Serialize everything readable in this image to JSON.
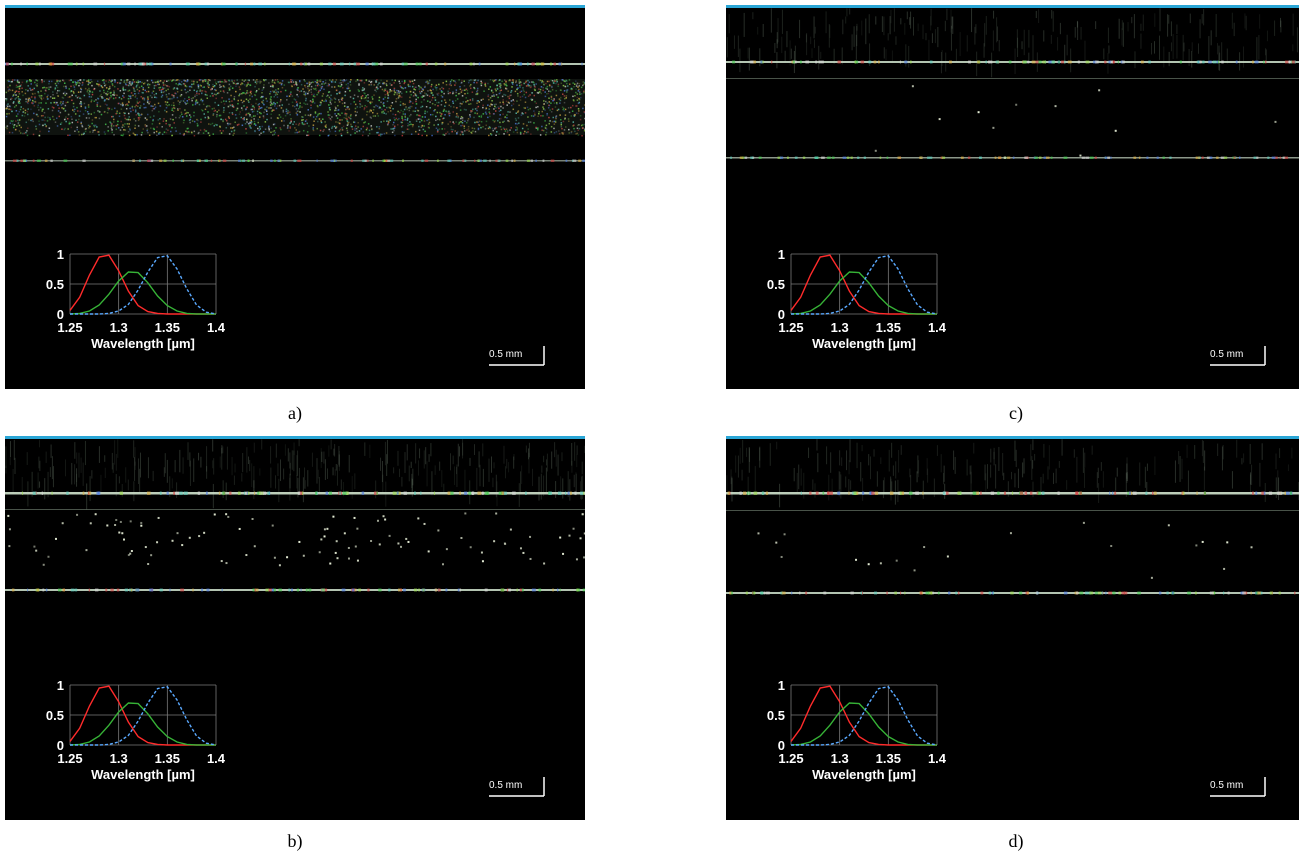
{
  "panels": [
    {
      "id": "a",
      "caption": "a)"
    },
    {
      "id": "b",
      "caption": "b)"
    },
    {
      "id": "c",
      "caption": "c)"
    },
    {
      "id": "d",
      "caption": "d)"
    }
  ],
  "inset_chart": {
    "y_ticks": [
      "1",
      "0.5",
      "0"
    ],
    "x_ticks": [
      "1.25",
      "1.3",
      "1.35",
      "1.4"
    ],
    "xlabel": "Wavelength [µm]",
    "colors": {
      "red": "#ff2b2b",
      "green": "#36b236",
      "blue": "#5aa9ff"
    }
  },
  "scalebar_label": "0.5 mm",
  "chart_data": {
    "type": "line",
    "x": [
      1.25,
      1.26,
      1.27,
      1.28,
      1.29,
      1.3,
      1.31,
      1.32,
      1.33,
      1.34,
      1.35,
      1.36,
      1.37,
      1.38,
      1.39,
      1.4
    ],
    "series": [
      {
        "values": [
          0.06,
          0.28,
          0.65,
          0.95,
          0.98,
          0.72,
          0.38,
          0.14,
          0.04,
          0.01,
          0,
          0,
          0,
          0,
          0,
          0
        ]
      },
      {
        "values": [
          0,
          0.01,
          0.05,
          0.15,
          0.33,
          0.55,
          0.7,
          0.69,
          0.52,
          0.3,
          0.14,
          0.05,
          0.01,
          0,
          0,
          0
        ]
      },
      {
        "values": [
          0,
          0,
          0,
          0,
          0.01,
          0.05,
          0.16,
          0.4,
          0.7,
          0.94,
          0.97,
          0.75,
          0.42,
          0.15,
          0.03,
          0
        ]
      }
    ],
    "xlabel": "Wavelength [µm]",
    "ylim": [
      0,
      1
    ],
    "xlim": [
      1.25,
      1.4
    ],
    "grid": true
  }
}
